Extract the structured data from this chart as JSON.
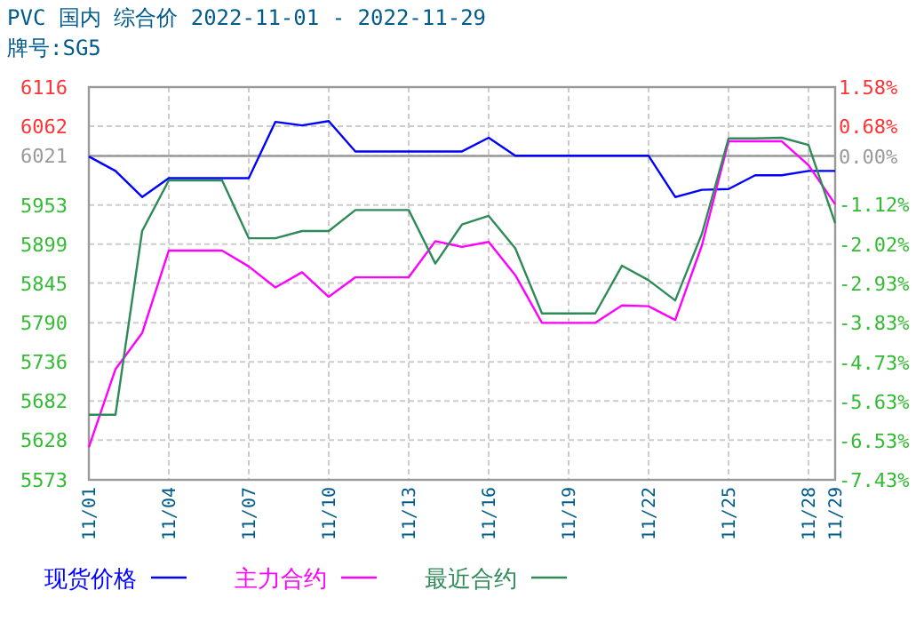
{
  "chart_data": {
    "type": "line",
    "title": "PVC 国内 综合价 2022-11-01 - 2022-11-29",
    "subtitle": "牌号:SG5",
    "x": [
      "2022-11-01",
      "2022-11-02",
      "2022-11-03",
      "2022-11-04",
      "2022-11-05",
      "2022-11-06",
      "2022-11-07",
      "2022-11-08",
      "2022-11-09",
      "2022-11-10",
      "2022-11-11",
      "2022-11-12",
      "2022-11-13",
      "2022-11-14",
      "2022-11-15",
      "2022-11-16",
      "2022-11-17",
      "2022-11-18",
      "2022-11-19",
      "2022-11-20",
      "2022-11-21",
      "2022-11-22",
      "2022-11-23",
      "2022-11-24",
      "2022-11-25",
      "2022-11-26",
      "2022-11-27",
      "2022-11-28",
      "2022-11-29"
    ],
    "series": [
      {
        "name": "现货价格",
        "color": "#0000ff",
        "values": [
          6020,
          6000,
          5964,
          5990,
          5990,
          5990,
          5990,
          6068,
          6063,
          6069,
          6027,
          6027,
          6027,
          6027,
          6027,
          6046,
          6021,
          6021,
          6021,
          6021,
          6021,
          6021,
          5964,
          5974,
          5975,
          5994,
          5994,
          6000,
          6000
        ]
      },
      {
        "name": "主力合约",
        "color": "#ff00ff",
        "values": [
          5618,
          5726,
          5776,
          5890,
          5890,
          5890,
          5868,
          5839,
          5860,
          5826,
          5853,
          5853,
          5853,
          5903,
          5895,
          5902,
          5856,
          5790,
          5790,
          5790,
          5814,
          5813,
          5794,
          5897,
          6041,
          6041,
          6041,
          6008,
          5954
        ]
      },
      {
        "name": "最近合约",
        "color": "#2e8b57",
        "values": [
          5663,
          5663,
          5917,
          5987,
          5987,
          5987,
          5907,
          5907,
          5917,
          5917,
          5946,
          5946,
          5946,
          5872,
          5926,
          5938,
          5893,
          5803,
          5803,
          5803,
          5869,
          5849,
          5821,
          5913,
          6045,
          6045,
          6046,
          6036,
          5928
        ]
      }
    ],
    "xlim": [
      "2022-11-01",
      "2022-11-29"
    ],
    "xticks": [
      {
        "value": "2022-11-01",
        "label": "11/01"
      },
      {
        "value": "2022-11-04",
        "label": "11/04"
      },
      {
        "value": "2022-11-07",
        "label": "11/07"
      },
      {
        "value": "2022-11-10",
        "label": "11/10"
      },
      {
        "value": "2022-11-13",
        "label": "11/13"
      },
      {
        "value": "2022-11-16",
        "label": "11/16"
      },
      {
        "value": "2022-11-19",
        "label": "11/19"
      },
      {
        "value": "2022-11-22",
        "label": "11/22"
      },
      {
        "value": "2022-11-25",
        "label": "11/25"
      },
      {
        "value": "2022-11-28",
        "label": "11/28"
      },
      {
        "value": "2022-11-29",
        "label": "11/29"
      }
    ],
    "ylim": [
      5573,
      6116
    ],
    "yticks": [
      5573,
      5628,
      5682,
      5736,
      5790,
      5845,
      5899,
      5953,
      6021,
      6062,
      6116
    ],
    "y2lim": [
      -7.43,
      1.58
    ],
    "y2ticks": [
      {
        "value": -7.43,
        "label": "-7.43%"
      },
      {
        "value": -6.53,
        "label": "-6.53%"
      },
      {
        "value": -5.63,
        "label": "-5.63%"
      },
      {
        "value": -4.73,
        "label": "-4.73%"
      },
      {
        "value": -3.83,
        "label": "-3.83%"
      },
      {
        "value": -2.93,
        "label": "-2.93%"
      },
      {
        "value": -2.02,
        "label": "-2.02%"
      },
      {
        "value": -1.12,
        "label": "-1.12%"
      },
      {
        "value": 0,
        "label": "0.00%"
      },
      {
        "value": 0.68,
        "label": "0.68%"
      },
      {
        "value": 1.58,
        "label": "1.58%"
      }
    ],
    "ref_lines": [
      {
        "axis": "y2",
        "value": 0,
        "color": "#999999"
      }
    ],
    "grid": true,
    "legend": "bottom"
  }
}
